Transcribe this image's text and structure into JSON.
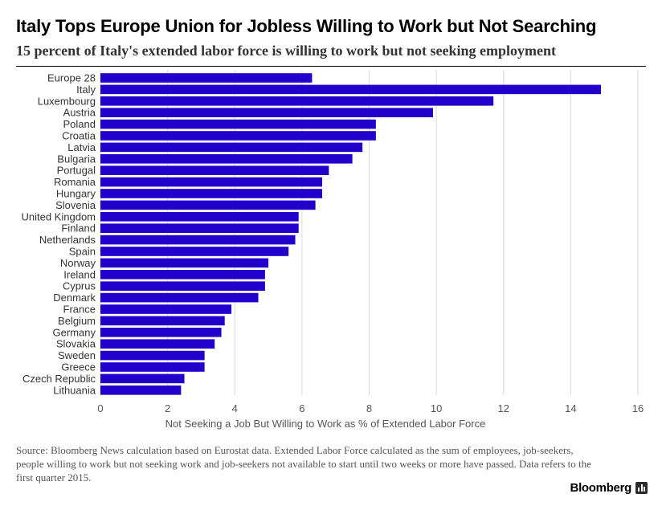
{
  "title": "Italy Tops Europe Union for Jobless Willing to Work but Not Searching",
  "subtitle": "15 percent of Italy's extended labor force is willing to work but not seeking employment",
  "footnote": "Source: Bloomberg News calculation based on Eurostat data. Extended Labor Force calculated as the sum of employees, job-seekers, people willing to work but not seeking work and job-seekers not available to start until two weeks or more have passed. Data refers to the first quarter 2015.",
  "brand": "Bloomberg",
  "colors": {
    "bar": "#2200cc",
    "grid": "#d9d9d9",
    "axis_text": "#555555",
    "category_text": "#333333"
  },
  "chart_data": {
    "type": "bar",
    "orientation": "horizontal",
    "title": "Italy Tops Europe Union for Jobless Willing to Work but Not Searching",
    "xlabel": "Not Seeking a Job But Willing to Work as % of Extended Labor Force",
    "ylabel": "",
    "xlim": [
      0,
      16
    ],
    "xticks": [
      0,
      2,
      4,
      6,
      8,
      10,
      12,
      14,
      16
    ],
    "grid": true,
    "categories": [
      "Europe 28",
      "Italy",
      "Luxembourg",
      "Austria",
      "Poland",
      "Croatia",
      "Latvia",
      "Bulgaria",
      "Portugal",
      "Romania",
      "Hungary",
      "Slovenia",
      "United Kingdom",
      "Finland",
      "Netherlands",
      "Spain",
      "Norway",
      "Ireland",
      "Cyprus",
      "Denmark",
      "France",
      "Belgium",
      "Germany",
      "Slovakia",
      "Sweden",
      "Greece",
      "Czech Republic",
      "Lithuania"
    ],
    "values": [
      6.3,
      14.9,
      11.7,
      9.9,
      8.2,
      8.2,
      7.8,
      7.5,
      6.8,
      6.6,
      6.6,
      6.4,
      5.9,
      5.9,
      5.8,
      5.6,
      5.0,
      4.9,
      4.9,
      4.7,
      3.9,
      3.7,
      3.6,
      3.4,
      3.1,
      3.1,
      2.5,
      2.4
    ]
  }
}
